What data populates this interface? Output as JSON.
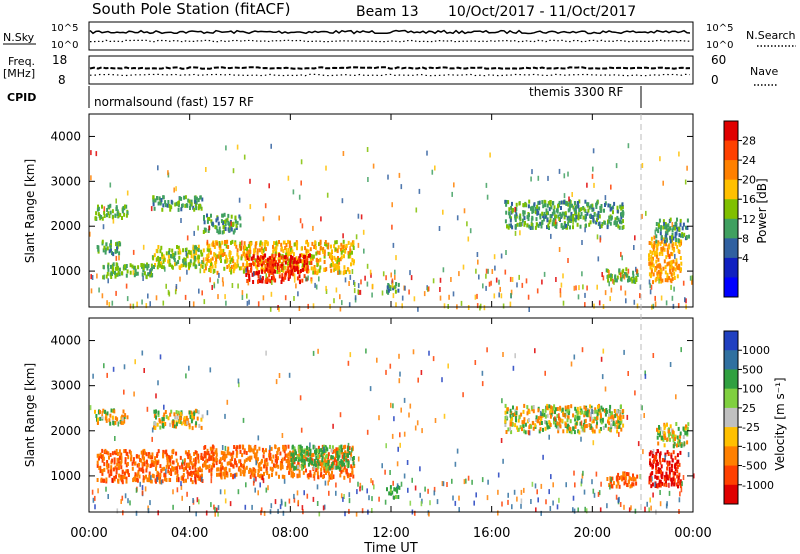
{
  "header": {
    "station": "South Pole Station (fitACF)",
    "beam": "Beam 13",
    "dates": "10/Oct/2017 - 11/Oct/2017"
  },
  "top_panels": {
    "nsky_label": "N.Sky",
    "nsky_ticks": [
      "10^5",
      "10^0"
    ],
    "nsearch_label": "N.Search",
    "nsearch_ticks": [
      "10^5",
      "10^0"
    ],
    "freq_label": "Freq.",
    "freq_unit": "[MHz]",
    "freq_ticks": [
      "18",
      "8"
    ],
    "nave_label": "Nave",
    "nave_ticks": [
      "60",
      "0"
    ],
    "cpid_label": "CPID",
    "cpid_segments": [
      {
        "label": "normalsound (fast) 157 RF",
        "start_hour": 0,
        "end_hour": 22.0
      },
      {
        "label": "themis 3300 RF",
        "start_hour": 22.0,
        "end_hour": 24
      }
    ]
  },
  "colorbars": {
    "power": {
      "label": "Power [dB]",
      "ticks": [
        "28",
        "24",
        "20",
        "16",
        "12",
        "8",
        "4"
      ],
      "colors": [
        "#e00000",
        "#ff4000",
        "#ff8000",
        "#ffc000",
        "#80c000",
        "#40a060",
        "#3060a0",
        "#1020c0",
        "#0000ff"
      ]
    },
    "velocity": {
      "label": "Velocity [m s⁻¹]",
      "ticks": [
        "1000",
        "500",
        "100",
        "25",
        "-25",
        "-100",
        "-500",
        "-1000"
      ],
      "colors": [
        "#2040c0",
        "#3070a0",
        "#30a040",
        "#80d040",
        "#c0c0c0",
        "#ffc000",
        "#ff8000",
        "#ff4000",
        "#e00000"
      ]
    }
  },
  "axes": {
    "y_label": "Slant Range [km]",
    "x_label": "Time UT",
    "x_ticks": [
      "00:00",
      "04:00",
      "08:00",
      "12:00",
      "16:00",
      "20:00",
      "00:00"
    ]
  },
  "chart_data": [
    {
      "type": "heatmap",
      "title": "",
      "quantity": "Power",
      "xlabel": "Time UT",
      "ylabel": "Slant Range [km]",
      "xlim_hours": [
        0,
        24
      ],
      "ylim": [
        200,
        4500
      ],
      "y_ticks": [
        1000,
        2000,
        3000,
        4000
      ],
      "echo_regions": [
        {
          "t_start": 0.2,
          "t_end": 1.5,
          "range_start": 2200,
          "range_end": 2500,
          "value_db": 10
        },
        {
          "t_start": 2.5,
          "t_end": 4.5,
          "range_start": 2400,
          "range_end": 2700,
          "value_db": 9
        },
        {
          "t_start": 4.5,
          "t_end": 6.0,
          "range_start": 1900,
          "range_end": 2300,
          "value_db": 8
        },
        {
          "t_start": 0.3,
          "t_end": 1.2,
          "range_start": 1400,
          "range_end": 1700,
          "value_db": 9
        },
        {
          "t_start": 0.5,
          "t_end": 2.5,
          "range_start": 900,
          "range_end": 1200,
          "value_db": 10
        },
        {
          "t_start": 2.5,
          "t_end": 4.5,
          "range_start": 1100,
          "range_end": 1600,
          "value_db": 12
        },
        {
          "t_start": 4.5,
          "t_end": 10.5,
          "range_start": 1000,
          "range_end": 1700,
          "value_db": 16
        },
        {
          "t_start": 6.2,
          "t_end": 8.8,
          "range_start": 800,
          "range_end": 1400,
          "value_db": 26
        },
        {
          "t_start": 11.8,
          "t_end": 12.3,
          "range_start": 550,
          "range_end": 800,
          "value_db": 8
        },
        {
          "t_start": 16.5,
          "t_end": 21.2,
          "range_start": 2000,
          "range_end": 2600,
          "value_db": 8
        },
        {
          "t_start": 20.5,
          "t_end": 21.8,
          "range_start": 800,
          "range_end": 1100,
          "value_db": 10
        },
        {
          "t_start": 22.2,
          "t_end": 23.5,
          "range_start": 800,
          "range_end": 1800,
          "value_db": 18
        },
        {
          "t_start": 22.5,
          "t_end": 23.8,
          "range_start": 1700,
          "range_end": 2200,
          "value_db": 8
        }
      ]
    },
    {
      "type": "heatmap",
      "title": "",
      "quantity": "Velocity",
      "xlabel": "Time UT",
      "ylabel": "Slant Range [km]",
      "xlim_hours": [
        0,
        24
      ],
      "ylim": [
        200,
        4500
      ],
      "y_ticks": [
        1000,
        2000,
        3000,
        4000
      ],
      "echo_regions": [
        {
          "t_start": 0.2,
          "t_end": 1.5,
          "range_start": 2200,
          "range_end": 2500,
          "value_ms": 0
        },
        {
          "t_start": 2.5,
          "t_end": 4.5,
          "range_start": 2100,
          "range_end": 2500,
          "value_ms": 0
        },
        {
          "t_start": 0.3,
          "t_end": 4.5,
          "range_start": 900,
          "range_end": 1600,
          "value_ms": -300
        },
        {
          "t_start": 4.5,
          "t_end": 10.5,
          "range_start": 1000,
          "range_end": 1700,
          "value_ms": -250
        },
        {
          "t_start": 8.0,
          "t_end": 10.5,
          "range_start": 1200,
          "range_end": 1700,
          "value_ms": 150
        },
        {
          "t_start": 11.8,
          "t_end": 12.3,
          "range_start": 550,
          "range_end": 800,
          "value_ms": 150
        },
        {
          "t_start": 16.5,
          "t_end": 21.2,
          "range_start": 2000,
          "range_end": 2600,
          "value_ms": 0
        },
        {
          "t_start": 20.5,
          "t_end": 21.8,
          "range_start": 800,
          "range_end": 1100,
          "value_ms": -300
        },
        {
          "t_start": 22.2,
          "t_end": 23.5,
          "range_start": 800,
          "range_end": 1600,
          "value_ms": -800
        },
        {
          "t_start": 22.5,
          "t_end": 23.8,
          "range_start": 1700,
          "range_end": 2200,
          "value_ms": 0
        }
      ]
    }
  ]
}
